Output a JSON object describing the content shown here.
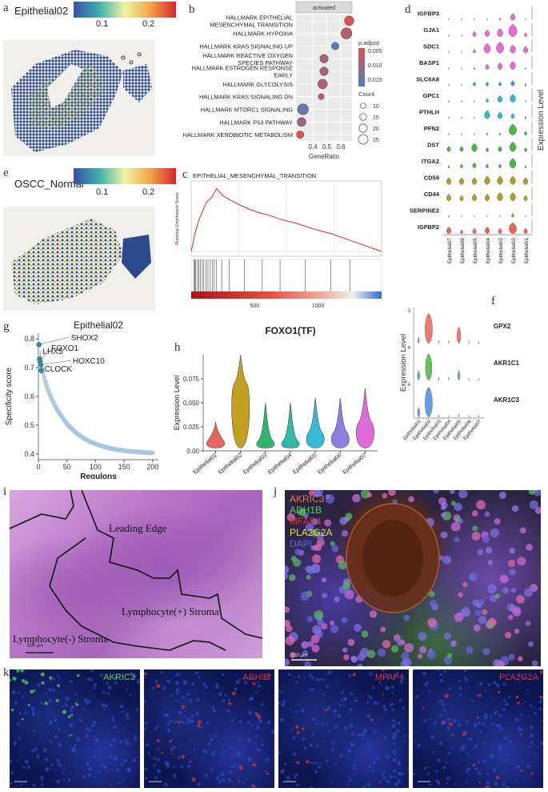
{
  "panel_labels": {
    "a": "a",
    "b": "b",
    "c": "c",
    "d": "d",
    "e": "e",
    "f": "f",
    "g": "g",
    "h": "h",
    "i": "i",
    "j": "j",
    "k": "k"
  },
  "panel_a": {
    "title": "Epithelial02",
    "ticks": [
      "0.1",
      "0.2"
    ]
  },
  "panel_e": {
    "title": "OSCC_Normal",
    "ticks": [
      "0.1",
      "0.2"
    ]
  },
  "colors": {
    "spatial_low": "#2b4a8c",
    "spatial_high": "#d7262b",
    "violin_pink": "#e66bd4",
    "violin_green": "#4db54a",
    "violin_olive": "#a9a12a",
    "violin_cyan": "#3ab8c9",
    "violin_blue": "#4b8be0",
    "violin_red": "#e8655c",
    "dot_red": "#d9534f",
    "dot_blue": "#4a7fc1"
  },
  "panel_b": {
    "chart_data": {
      "type": "scatter",
      "facet_label": "activated",
      "categories": [
        "HALLMARK EPITHELIAL MESENCHYMAL TRANSITION",
        "HALLMARK HYPOXIA",
        "HALLMARK KRAS SIGNALING UP",
        "HALLMARK REACTIVE OXYGEN SPECIES PATHWAY",
        "HALLMARK ESTROGEN RESPONSE EARLY",
        "HALLMARK GLYCOLYSIS",
        "HALLMARK KRAS SIGNALING DN",
        "HALLMARK MTORC1 SIGNALING",
        "HALLMARK P53 PATHWAY",
        "HALLMARK XENOBIOTIC METABOLISM"
      ],
      "category_lines": [
        [
          "HALLMARK EPITHELIAL",
          "MESENCHYMAL TRANSITION"
        ],
        [
          "HALLMARK HYPOXIA"
        ],
        [
          "HALLMARK KRAS SIGNALING UP"
        ],
        [
          "HALLMARK REACTIVE OXYGEN",
          "SPECIES PATHWAY"
        ],
        [
          "HALLMARK ESTROGEN RESPONSE",
          "EARLY"
        ],
        [
          "HALLMARK GLYCOLYSIS"
        ],
        [
          "HALLMARK KRAS SIGNALING DN"
        ],
        [
          "HALLMARK MTORC1 SIGNALING"
        ],
        [
          "HALLMARK P53 PATHWAY"
        ],
        [
          "HALLMARK XENOBIOTIC METABOLISM"
        ]
      ],
      "gene_ratio": [
        0.66,
        0.64,
        0.56,
        0.48,
        0.48,
        0.47,
        0.46,
        0.33,
        0.32,
        0.31
      ],
      "count": [
        18,
        22,
        12,
        15,
        15,
        18,
        8,
        22,
        16,
        12
      ],
      "p_adjust": [
        0.003,
        0.006,
        0.015,
        0.007,
        0.007,
        0.007,
        0.005,
        0.012,
        0.008,
        0.003
      ],
      "xlabel": "GeneRatio",
      "xticks": [
        "0.4",
        "0.5",
        "0.6"
      ],
      "legend_color_title": "p.adjust",
      "legend_color_ticks": [
        "0.005",
        "0.010",
        "0.015"
      ],
      "legend_size_title": "Count",
      "legend_size_ticks": [
        "10",
        "15",
        "20",
        "25"
      ]
    }
  },
  "panel_c": {
    "chart_data": {
      "type": "line",
      "title": "EPITHELIAL_MESENCHYMAL_TRANSITION",
      "ylabel": "Running Enrichment Score",
      "x": [
        0,
        30,
        60,
        90,
        120,
        160,
        200,
        250,
        300,
        380,
        460,
        540,
        620,
        700,
        780,
        860,
        940,
        1020,
        1100,
        1180,
        1260,
        1340,
        1420,
        1500
      ],
      "y": [
        0.0,
        0.2,
        0.35,
        0.45,
        0.55,
        0.6,
        0.7,
        0.62,
        0.58,
        0.52,
        0.47,
        0.43,
        0.4,
        0.36,
        0.33,
        0.3,
        0.26,
        0.23,
        0.2,
        0.16,
        0.12,
        0.08,
        0.04,
        0.0
      ],
      "xticks": [
        "500",
        "1000"
      ],
      "hits": [
        20,
        28,
        36,
        50,
        60,
        72,
        88,
        100,
        118,
        132,
        150,
        168,
        182,
        200,
        240,
        300,
        420,
        560,
        700,
        900,
        1100,
        1250
      ]
    }
  },
  "panel_d": {
    "chart_data": {
      "type": "violin",
      "genes": [
        "IGFBP3",
        "GJA1",
        "SDC1",
        "BASP1",
        "SLC6A8",
        "GPC1",
        "PTHLH",
        "PFN2",
        "DST",
        "ITGA2",
        "CD59",
        "CD44",
        "SERPINE2",
        "IGFBP2"
      ],
      "groups": [
        "Epithelial07",
        "Epithelial06",
        "Epithelial05",
        "Epithelial04",
        "Epithelial03",
        "Epithelial02",
        "Epithelial01"
      ],
      "ylabel": "Expression Level"
    }
  },
  "panel_f": {
    "chart_data": {
      "type": "violin",
      "genes": [
        "GPX2",
        "AKR1C1",
        "AKR1C3"
      ],
      "groups": [
        "Epithelial01",
        "Epithelial02",
        "Epithelial03",
        "Epithelial04",
        "Epithelial05",
        "Epithelial06",
        "Epithelial07"
      ],
      "ylabel": "Expression Level",
      "yticks": [
        [
          "3"
        ],
        [
          "4"
        ],
        [
          "4"
        ]
      ]
    }
  },
  "panel_g": {
    "chart_data": {
      "type": "scatter",
      "title": "Epithelial02",
      "xlabel": "Regulons",
      "ylabel": "Specificity score",
      "yticks": [
        "0.4",
        "0.5",
        "0.6",
        "0.7",
        "0.8"
      ],
      "xticks": [
        "0",
        "50",
        "100",
        "150",
        "200"
      ],
      "ylim": [
        0.38,
        0.82
      ],
      "xlim": [
        0,
        210
      ],
      "highlighted": [
        {
          "label": "SHOX2",
          "rank": 1,
          "score": 0.78
        },
        {
          "label": "LHX5",
          "rank": 2,
          "score": 0.73
        },
        {
          "label": "FOXO1",
          "rank": 3,
          "score": 0.72
        },
        {
          "label": "HOXC10",
          "rank": 4,
          "score": 0.71
        },
        {
          "label": "CLOCK",
          "rank": 5,
          "score": 0.69
        }
      ]
    }
  },
  "panel_h": {
    "chart_data": {
      "type": "violin",
      "title": "FOXO1(TF)",
      "ylabel": "Expression Level",
      "categories": [
        "Epithelial01",
        "Epithelial02",
        "Epithelial03",
        "Epithelial04",
        "Epithelial05",
        "Epithelial06",
        "Epithelial07"
      ],
      "medians": [
        0.013,
        0.07,
        0.012,
        0.012,
        0.02,
        0.02,
        0.03
      ],
      "maxes": [
        0.03,
        0.1,
        0.05,
        0.05,
        0.055,
        0.055,
        0.065
      ],
      "yticks": [
        "0.00",
        "0.025",
        "0.050",
        "0.075"
      ],
      "ylim": [
        0,
        0.1
      ],
      "colors": [
        "#e8655c",
        "#c4a020",
        "#2fb56a",
        "#34b8a8",
        "#3ab8d8",
        "#8c7fe0",
        "#e06bd6"
      ]
    }
  },
  "panel_i": {
    "labels": {
      "leading_edge": "Leading Edge",
      "lymph_pos": "Lymphocyte(+) Stroma",
      "lymph_neg": "Lymphocyte(-) Stroma"
    },
    "scale": "500 μm"
  },
  "panel_j": {
    "channels": [
      {
        "name": "AKRIC3",
        "color": "#e87d4c"
      },
      {
        "name": "ADH1B",
        "color": "#5bd45b"
      },
      {
        "name": "MFAP4",
        "color": "#e8302c"
      },
      {
        "name": "PLA2G2A",
        "color": "#f0e050"
      },
      {
        "name": "DAPI",
        "color": "#5a6ee8"
      }
    ],
    "scale": "150 μm"
  },
  "panel_k": {
    "tiles": [
      {
        "name": "AKRIC3",
        "color": "#5bd45b"
      },
      {
        "name": "ADHIB",
        "color": "#e8302c"
      },
      {
        "name": "MFAP4",
        "color": "#e8302c"
      },
      {
        "name": "PLA2G2A",
        "color": "#e8302c"
      }
    ]
  }
}
